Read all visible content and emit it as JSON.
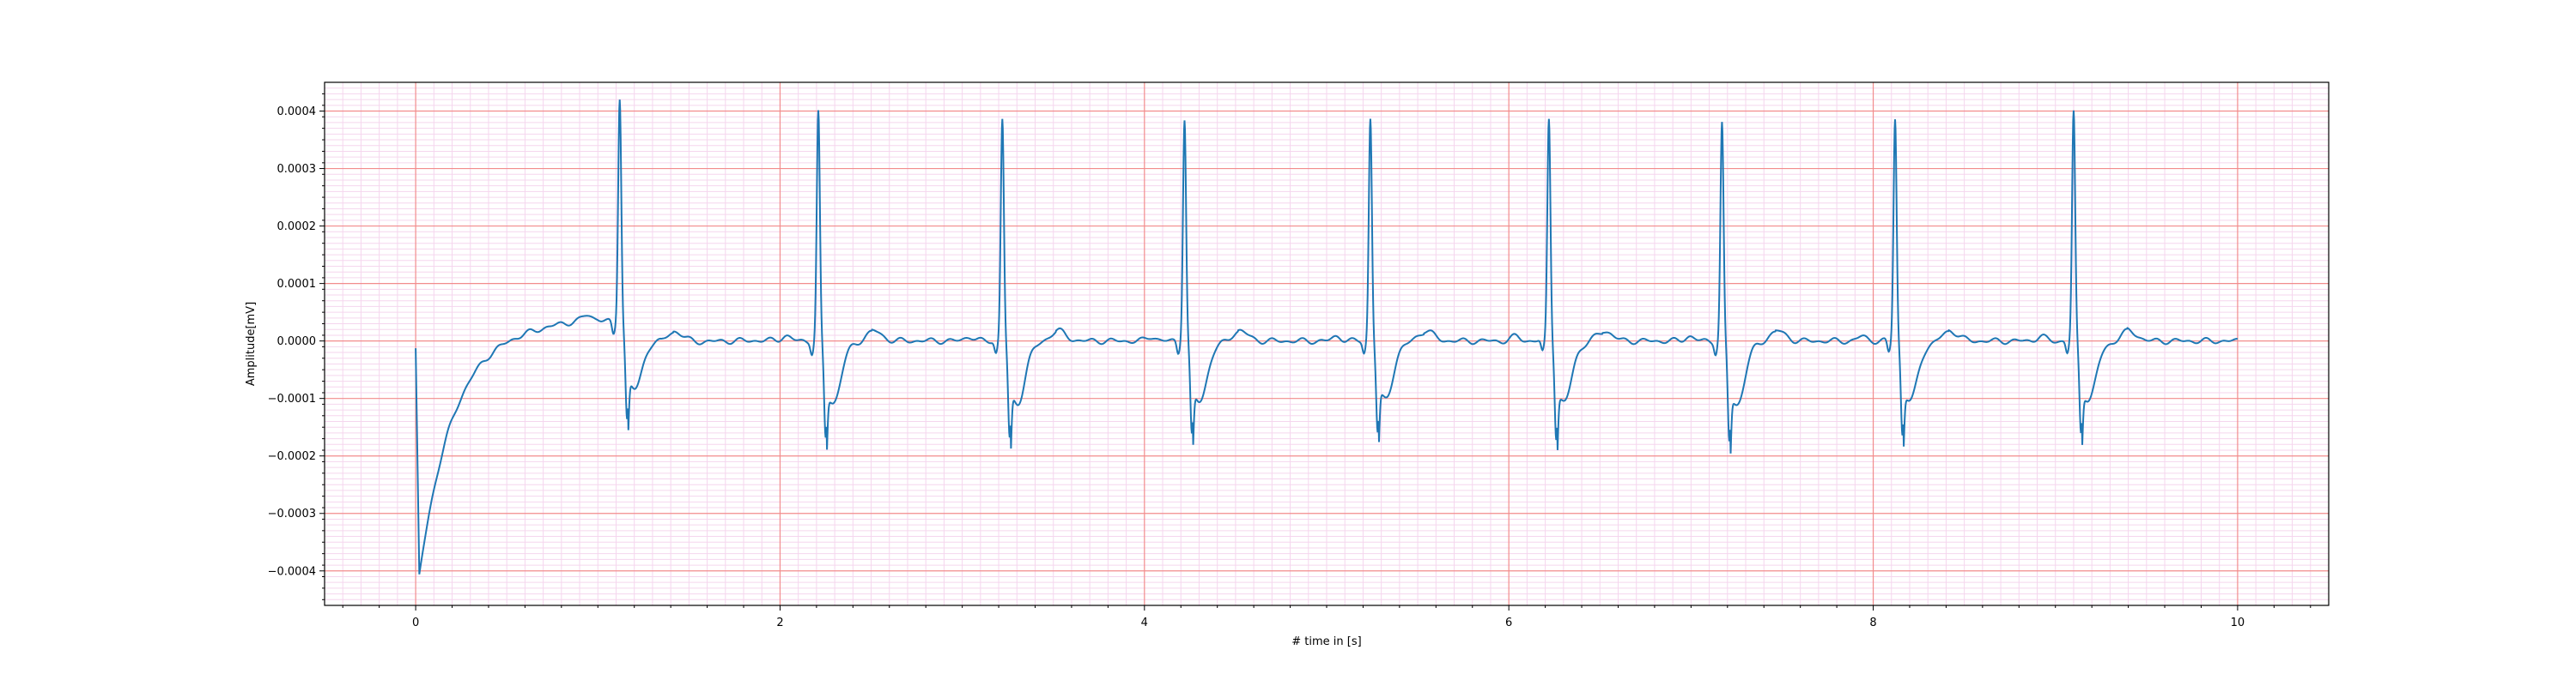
{
  "chart_data": {
    "type": "line",
    "title": "",
    "xlabel": "# time in [s]",
    "ylabel": "Amplitude[mV]",
    "xlim": [
      -0.5,
      10.5
    ],
    "ylim": [
      -0.00046,
      0.00045
    ],
    "x_ticks": [
      0,
      2,
      4,
      6,
      8,
      10
    ],
    "x_tick_labels": [
      "0",
      "2",
      "4",
      "6",
      "8",
      "10"
    ],
    "y_ticks": [
      0.0004,
      0.0003,
      0.0002,
      0.0001,
      0.0,
      -0.0001,
      -0.0002,
      -0.0003,
      -0.0004
    ],
    "y_tick_labels": [
      "0.0004",
      "0.0003",
      "0.0002",
      "0.0001",
      "0.0000",
      "−0.0001",
      "−0.0002",
      "−0.0003",
      "−0.0004"
    ],
    "grid": true,
    "minor_grid": true,
    "line_color": "#1f77b4",
    "major_grid_color": "#f28c8c",
    "minor_grid_color": "#f5d6ee",
    "r_peaks_s": [
      1.12,
      2.21,
      3.22,
      4.22,
      5.24,
      6.22,
      7.17,
      8.12,
      9.1
    ],
    "r_peak_values": [
      0.0004,
      0.0004,
      0.00039,
      0.00039,
      0.00039,
      0.00039,
      0.00038,
      0.00039,
      0.0004
    ],
    "s_wave_values": [
      -0.000135,
      -0.000142,
      -0.000145,
      -0.00014,
      -0.000135,
      -0.000143,
      -0.000148,
      -0.000138,
      -0.000135
    ],
    "baseline_wander": {
      "start_value": -1.5e-05,
      "minimum_value": -0.00041,
      "minimum_at_s": 0.02,
      "plateau_value": 4e-05
    },
    "t_wave_amplitude": 1.8e-05,
    "duration_s": 10.0
  }
}
